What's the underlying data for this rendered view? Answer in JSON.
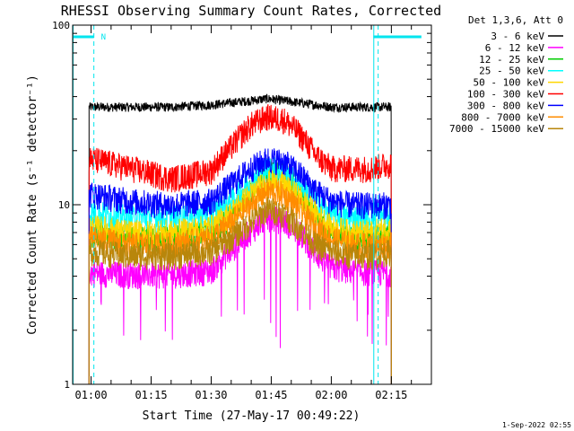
{
  "chart_data": {
    "type": "line",
    "title": "RHESSI Observing Summary Count Rates, Corrected",
    "xlabel": "Start Time (27-May-17 00:49:22)",
    "ylabel": "Corrected Count Rate (s⁻¹ detector⁻¹)",
    "yscale": "log",
    "ylim": [
      1,
      100
    ],
    "xlim_minutes_after_0100": [
      -4.6,
      85
    ],
    "x_tick_labels": [
      "01:00",
      "01:15",
      "01:30",
      "01:45",
      "02:00",
      "02:15"
    ],
    "x_tick_minutes_after_0100": [
      0,
      15,
      30,
      45,
      60,
      75
    ],
    "y_tick_labels": [
      "1",
      "10",
      "100"
    ],
    "y_tick_values": [
      1,
      10,
      100
    ],
    "grid": false,
    "legend_position": "outside-right",
    "legend_header": "Det 1,3,6, Att 0",
    "attenuator_flag_label": "N",
    "attenuator_flag_times_minutes": [
      0.7,
      71.7
    ],
    "data_start_minute": -0.5,
    "data_end_minute": 75,
    "footer_date": "1-Sep-2022 02:55",
    "series": [
      {
        "name": "3 - 6 keV",
        "color": "#000000",
        "x": [
          0,
          10,
          20,
          30,
          35,
          40,
          44,
          48,
          52,
          56,
          60,
          65,
          70,
          75
        ],
        "y": [
          35,
          35,
          35,
          36,
          37,
          38,
          39,
          38,
          37,
          36,
          35,
          35,
          35,
          35
        ]
      },
      {
        "name": "6 - 12 keV",
        "color": "#ff00ff",
        "x": [
          0,
          10,
          20,
          30,
          35,
          40,
          44,
          48,
          52,
          56,
          60,
          65,
          70,
          75
        ],
        "y": [
          4.2,
          4.1,
          4.1,
          4.3,
          5.6,
          7.2,
          8.5,
          8.2,
          7,
          5.4,
          4.5,
          4.3,
          4.2,
          4.2
        ]
      },
      {
        "name": "12 - 25 keV",
        "color": "#00cc00",
        "x": [
          0,
          10,
          20,
          30,
          35,
          40,
          44,
          48,
          52,
          56,
          60,
          65,
          70,
          75
        ],
        "y": [
          7,
          6.5,
          6.5,
          7,
          8.5,
          12,
          15.5,
          15,
          12,
          8.5,
          7,
          6.5,
          6.5,
          7
        ]
      },
      {
        "name": "25 - 50 keV",
        "color": "#00ffff",
        "x": [
          0,
          10,
          20,
          30,
          35,
          40,
          44,
          48,
          52,
          56,
          60,
          65,
          70,
          75
        ],
        "y": [
          9,
          8.5,
          8.5,
          9,
          10.5,
          13.5,
          16,
          15.5,
          13,
          10.5,
          9,
          8.5,
          8.5,
          9
        ]
      },
      {
        "name": "50 - 100 keV",
        "color": "#ffd700",
        "x": [
          0,
          10,
          20,
          30,
          35,
          40,
          44,
          48,
          52,
          56,
          60,
          65,
          70,
          75
        ],
        "y": [
          7.5,
          7,
          7,
          7.5,
          9,
          11.5,
          13.5,
          13,
          11,
          9,
          7.5,
          7,
          7,
          7.5
        ]
      },
      {
        "name": "100 - 300 keV",
        "color": "#ff0000",
        "x": [
          0,
          10,
          20,
          30,
          35,
          40,
          44,
          48,
          52,
          56,
          60,
          65,
          70,
          75
        ],
        "y": [
          18,
          16,
          14,
          15.5,
          21,
          28,
          31,
          30,
          25,
          19,
          16,
          16,
          16,
          17
        ]
      },
      {
        "name": "300 - 800 keV",
        "color": "#0000ff",
        "x": [
          0,
          10,
          20,
          30,
          35,
          40,
          44,
          48,
          52,
          56,
          60,
          65,
          70,
          75
        ],
        "y": [
          11.5,
          10.5,
          10,
          10.5,
          13,
          16,
          18,
          17.5,
          15,
          12,
          10.5,
          10,
          10,
          10
        ]
      },
      {
        "name": "800 - 7000 keV",
        "color": "#ff8c00",
        "x": [
          0,
          10,
          20,
          30,
          35,
          40,
          44,
          48,
          52,
          56,
          60,
          65,
          70,
          75
        ],
        "y": [
          6.5,
          6,
          6,
          6.5,
          8,
          10,
          12,
          11.5,
          9.5,
          7.5,
          6.5,
          6,
          6,
          6
        ]
      },
      {
        "name": "7000 - 15000 keV",
        "color": "#b8860b",
        "x": [
          0,
          10,
          20,
          30,
          35,
          40,
          44,
          48,
          52,
          56,
          60,
          65,
          70,
          75
        ],
        "y": [
          5.5,
          5.2,
          5.2,
          5.5,
          6.5,
          8,
          9.5,
          9,
          7.5,
          6,
          5.5,
          5.2,
          5.2,
          5.5
        ]
      }
    ]
  }
}
